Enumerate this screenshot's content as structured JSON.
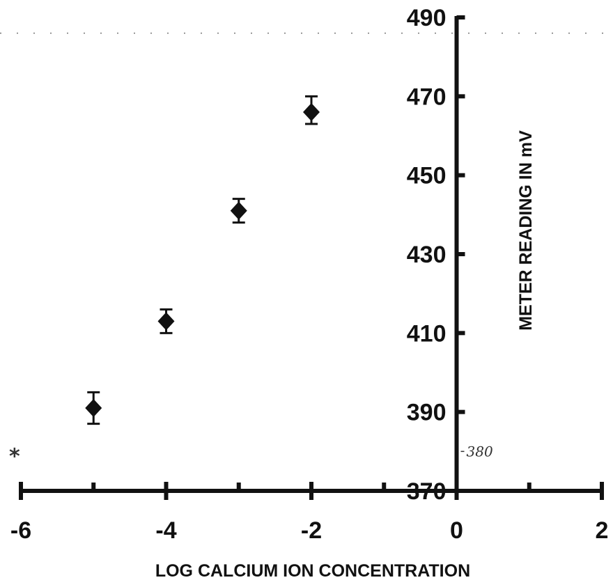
{
  "chart_data": {
    "type": "scatter",
    "title": "",
    "xlabel": "LOG CALCIUM ION CONCENTRATION",
    "ylabel": "METER READING IN mV",
    "xlim": [
      -6,
      2
    ],
    "ylim": [
      370,
      490
    ],
    "x_ticks": [
      -6,
      -4,
      -2,
      0,
      2
    ],
    "x_tick_labels": [
      "-6",
      "-4",
      "-2",
      "0",
      "2"
    ],
    "y_ticks": [
      370,
      390,
      410,
      430,
      450,
      470,
      490
    ],
    "y_tick_labels": [
      "370",
      "390",
      "410",
      "430",
      "450",
      "470",
      "490"
    ],
    "x_minor_ticks": [
      -5,
      -3,
      -1,
      1
    ],
    "grid": false,
    "dotted_reference_line_at": 486,
    "marker": "diamond",
    "points": [
      {
        "x": -5,
        "y": 391,
        "err_low": 387,
        "err_high": 395
      },
      {
        "x": -4,
        "y": 413,
        "err_low": 410,
        "err_high": 416
      },
      {
        "x": -3,
        "y": 441,
        "err_low": 438,
        "err_high": 444
      },
      {
        "x": -2,
        "y": 466,
        "err_low": 463,
        "err_high": 470
      }
    ],
    "annotations": [
      {
        "text": "380",
        "kind": "handwritten",
        "x": 0,
        "y": 380
      },
      {
        "text": "*",
        "kind": "handwritten-mark",
        "x": -6,
        "y": 380
      }
    ],
    "colors": {
      "ink": "#111111",
      "note": "#333333"
    }
  }
}
